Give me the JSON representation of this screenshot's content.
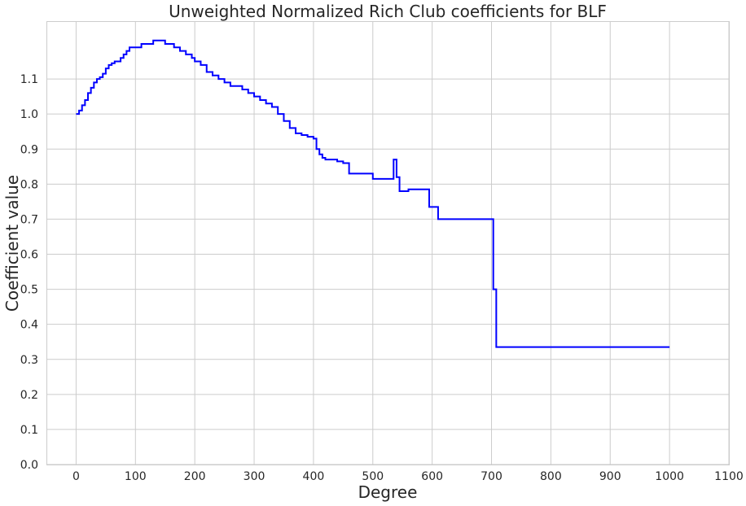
{
  "chart_data": {
    "type": "line",
    "title": "Unweighted Normalized Rich Club coefficients for BLF",
    "xlabel": "Degree",
    "ylabel": "Coefficient value",
    "xlim": [
      -50,
      1100
    ],
    "ylim": [
      0.0,
      1.265
    ],
    "xticks": [
      0,
      100,
      200,
      300,
      400,
      500,
      600,
      700,
      800,
      900,
      1000,
      1100
    ],
    "yticks": [
      0.0,
      0.1,
      0.2,
      0.3,
      0.4,
      0.5,
      0.6,
      0.7,
      0.8,
      0.9,
      1.0,
      1.1
    ],
    "xtick_labels": [
      "0",
      "100",
      "200",
      "300",
      "400",
      "500",
      "600",
      "700",
      "800",
      "900",
      "1000",
      "1100"
    ],
    "ytick_labels": [
      "0.0",
      "0.1",
      "0.2",
      "0.3",
      "0.4",
      "0.5",
      "0.6",
      "0.7",
      "0.8",
      "0.9",
      "1.0",
      "1.1"
    ],
    "grid": true,
    "step": true,
    "series": [
      {
        "color": "#0000ff",
        "x": [
          0,
          5,
          10,
          15,
          20,
          25,
          30,
          35,
          40,
          45,
          50,
          55,
          60,
          65,
          70,
          75,
          80,
          85,
          90,
          95,
          100,
          105,
          110,
          115,
          120,
          125,
          130,
          135,
          140,
          145,
          150,
          155,
          160,
          165,
          170,
          175,
          180,
          185,
          190,
          195,
          200,
          210,
          220,
          230,
          240,
          250,
          260,
          270,
          280,
          290,
          300,
          310,
          320,
          330,
          340,
          350,
          360,
          370,
          380,
          390,
          400,
          405,
          410,
          415,
          420,
          430,
          440,
          450,
          460,
          470,
          480,
          490,
          500,
          510,
          520,
          530,
          535,
          540,
          545,
          550,
          560,
          570,
          580,
          590,
          595,
          605,
          610,
          620,
          650,
          680,
          700,
          703,
          705,
          708,
          710,
          750,
          800,
          850,
          900,
          950,
          1000
        ],
        "y": [
          1.0,
          1.01,
          1.025,
          1.04,
          1.06,
          1.075,
          1.09,
          1.1,
          1.105,
          1.115,
          1.13,
          1.14,
          1.145,
          1.15,
          1.15,
          1.16,
          1.17,
          1.18,
          1.19,
          1.19,
          1.19,
          1.19,
          1.2,
          1.2,
          1.2,
          1.2,
          1.21,
          1.21,
          1.21,
          1.21,
          1.2,
          1.2,
          1.2,
          1.19,
          1.19,
          1.18,
          1.18,
          1.17,
          1.17,
          1.16,
          1.15,
          1.14,
          1.12,
          1.11,
          1.1,
          1.09,
          1.08,
          1.08,
          1.07,
          1.06,
          1.05,
          1.04,
          1.03,
          1.02,
          1.0,
          0.98,
          0.96,
          0.945,
          0.94,
          0.935,
          0.93,
          0.9,
          0.885,
          0.875,
          0.87,
          0.87,
          0.865,
          0.86,
          0.83,
          0.83,
          0.83,
          0.83,
          0.815,
          0.815,
          0.815,
          0.815,
          0.87,
          0.82,
          0.78,
          0.78,
          0.785,
          0.785,
          0.785,
          0.785,
          0.735,
          0.735,
          0.7,
          0.7,
          0.7,
          0.7,
          0.7,
          0.5,
          0.5,
          0.335,
          0.335,
          0.335,
          0.335,
          0.335,
          0.335,
          0.335,
          0.335
        ]
      }
    ]
  }
}
